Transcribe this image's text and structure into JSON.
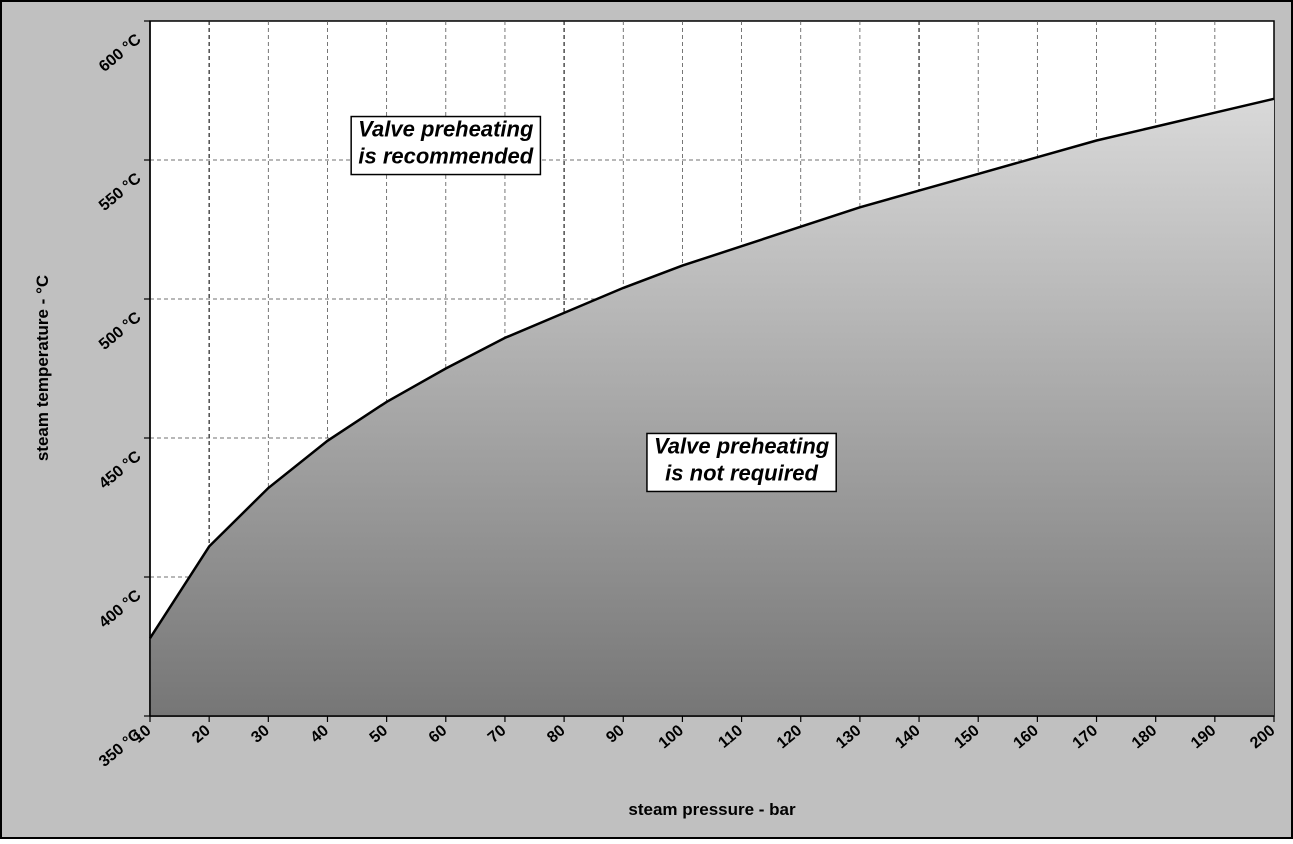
{
  "chart_data": {
    "type": "area",
    "xlabel": "steam pressure - bar",
    "ylabel": "steam temperature - °C",
    "xlim": [
      10,
      200
    ],
    "ylim": [
      350,
      600
    ],
    "x_ticks": [
      "10",
      "20",
      "30",
      "40",
      "50",
      "60",
      "70",
      "80",
      "90",
      "100",
      "110",
      "120",
      "130",
      "140",
      "150",
      "160",
      "170",
      "180",
      "190",
      "200"
    ],
    "y_ticks": [
      "350 °C",
      "400 °C",
      "450 °C",
      "500 °C",
      "550 °C",
      "600 °C"
    ],
    "grid": true,
    "series": [
      {
        "x": [
          10,
          20,
          30,
          40,
          50,
          60,
          70,
          80,
          90,
          100,
          110,
          120,
          130,
          140,
          150,
          160,
          170,
          180,
          190,
          200
        ],
        "values": [
          378,
          411,
          432,
          449,
          463,
          475,
          486,
          495,
          504,
          512,
          519,
          526,
          533,
          539,
          545,
          551,
          557,
          562,
          567,
          572
        ]
      }
    ],
    "annotations": [
      {
        "id": "recommended",
        "lines": [
          "Valve preheating",
          "is recommended"
        ],
        "x": 60,
        "y": 557
      },
      {
        "id": "not-required",
        "lines": [
          "Valve preheating",
          "is not required"
        ],
        "x": 110,
        "y": 443
      }
    ],
    "colors": {
      "background": "#c0c0c0",
      "plot_area": "#ffffff",
      "fill_top": "#d9d9d9",
      "fill_bottom": "#767676",
      "line": "#000000"
    }
  }
}
